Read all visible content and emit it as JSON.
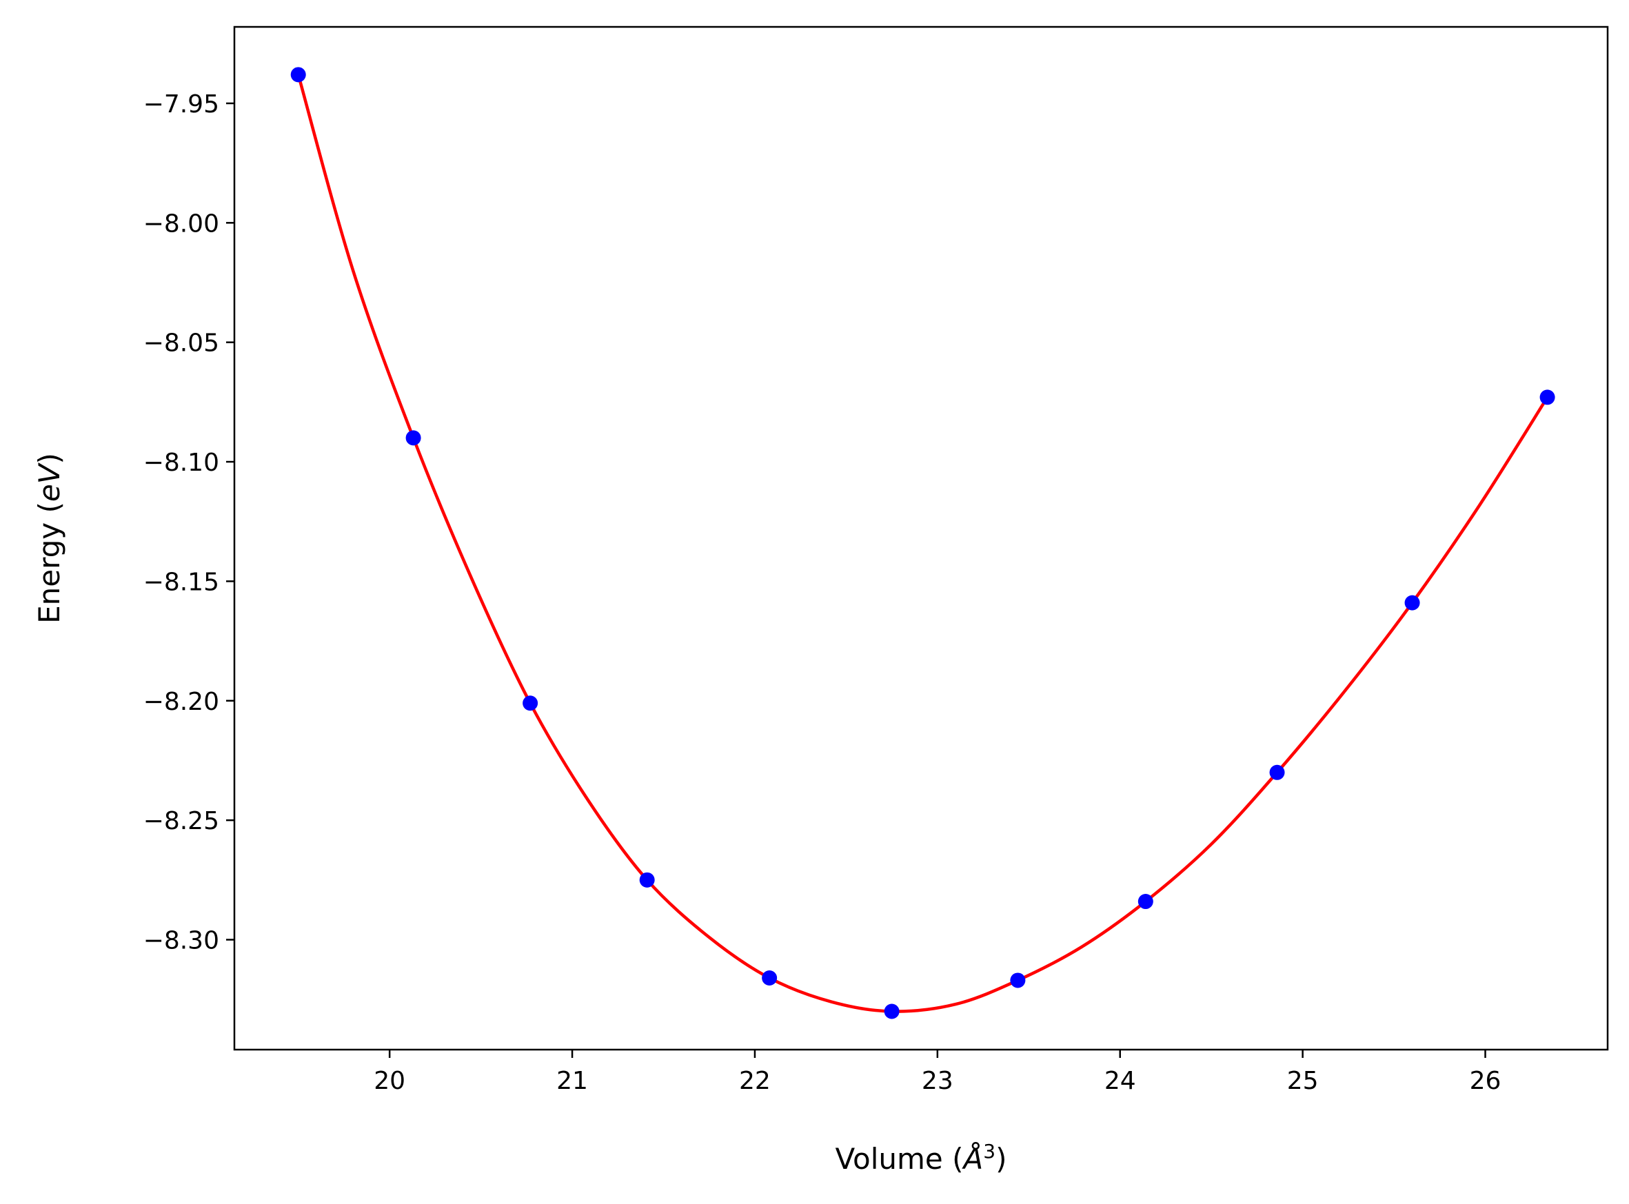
{
  "colors": {
    "fit_line": "#ff0000",
    "data_points": "#0000ff",
    "axes": "#000000",
    "background": "#ffffff"
  },
  "chart_data": {
    "type": "scatter",
    "xlabel": "Volume (Å³)",
    "xlabel_parts": {
      "prefix": "Volume (",
      "symbol": "Å",
      "exponent": "3",
      "suffix": ")"
    },
    "ylabel": "Energy (eV)",
    "ylabel_parts": {
      "prefix": "Energy (",
      "symbol": "eV",
      "suffix": ")"
    },
    "xlim": [
      19.15,
      26.67
    ],
    "ylim": [
      -8.346,
      -7.918
    ],
    "grid": false,
    "legend": "none",
    "x_ticks": [
      {
        "value": 20,
        "label": "20"
      },
      {
        "value": 21,
        "label": "21"
      },
      {
        "value": 22,
        "label": "22"
      },
      {
        "value": 23,
        "label": "23"
      },
      {
        "value": 24,
        "label": "24"
      },
      {
        "value": 25,
        "label": "25"
      },
      {
        "value": 26,
        "label": "26"
      }
    ],
    "y_ticks": [
      {
        "value": -7.95,
        "label": "−7.95"
      },
      {
        "value": -8.0,
        "label": "−8.00"
      },
      {
        "value": -8.05,
        "label": "−8.05"
      },
      {
        "value": -8.1,
        "label": "−8.10"
      },
      {
        "value": -8.15,
        "label": "−8.15"
      },
      {
        "value": -8.2,
        "label": "−8.20"
      },
      {
        "value": -8.25,
        "label": "−8.25"
      },
      {
        "value": -8.3,
        "label": "−8.30"
      }
    ],
    "series": [
      {
        "kind": "points",
        "color": "#0000ff",
        "x": [
          19.5,
          20.13,
          20.77,
          21.41,
          22.08,
          22.75,
          23.44,
          24.14,
          24.86,
          25.6,
          26.34
        ],
        "y": [
          -7.938,
          -8.09,
          -8.201,
          -8.275,
          -8.316,
          -8.33,
          -8.317,
          -8.284,
          -8.23,
          -8.159,
          -8.073
        ]
      },
      {
        "kind": "fit-line",
        "color": "#ff0000",
        "x": [
          19.5,
          19.8,
          20.13,
          20.45,
          20.77,
          21.09,
          21.41,
          21.75,
          22.08,
          22.42,
          22.75,
          23.1,
          23.44,
          23.79,
          24.14,
          24.5,
          24.86,
          25.23,
          25.6,
          25.97,
          26.34
        ],
        "y": [
          -7.938,
          -8.02,
          -8.09,
          -8.149,
          -8.201,
          -8.242,
          -8.275,
          -8.299,
          -8.316,
          -8.326,
          -8.33,
          -8.327,
          -8.317,
          -8.303,
          -8.284,
          -8.26,
          -8.23,
          -8.196,
          -8.159,
          -8.118,
          -8.073
        ]
      }
    ]
  }
}
